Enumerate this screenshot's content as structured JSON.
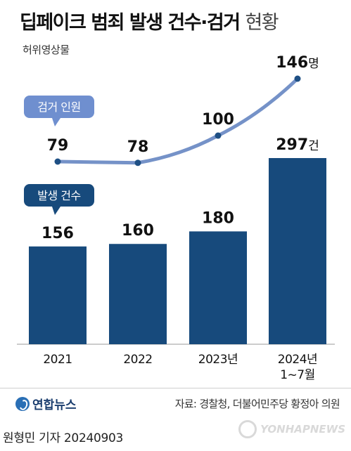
{
  "title": {
    "main": "딥페이크 범죄 발생 건수·검거",
    "suffix": "현황"
  },
  "subtitle": "허위영상물",
  "colors": {
    "bar": "#174a7c",
    "line": "#7592c8",
    "line_dot": "#1e4f84",
    "callout_arrest": "#6f8fcf",
    "callout_occur": "#174a7c"
  },
  "chart_data": {
    "type": "bar+line",
    "categories": [
      "2021",
      "2022",
      "2023년",
      "2024년\n1~7월"
    ],
    "category_lines": [
      [
        "2021"
      ],
      [
        "2022"
      ],
      [
        "2023년"
      ],
      [
        "2024년",
        "1~7월"
      ]
    ],
    "series": [
      {
        "name": "발생 건수",
        "type": "bar",
        "values": [
          156,
          160,
          180,
          297
        ],
        "labels": [
          "156",
          "160",
          "180",
          "297"
        ],
        "last_unit": "건"
      },
      {
        "name": "검거 인원",
        "type": "line",
        "values": [
          79,
          78,
          100,
          146
        ],
        "labels": [
          "79",
          "78",
          "100",
          "146"
        ],
        "last_unit": "명"
      }
    ],
    "legend": "callouts at left"
  },
  "callouts": {
    "arrest": "검거 인원",
    "occurrence": "발생 건수"
  },
  "footer": {
    "logo_text": "연합뉴스",
    "source": "자료: 경찰청, 더불어민주당 황정아 의원",
    "reporter": "원형민 기자  20240903",
    "watermark": "YONHAPNEWS"
  }
}
